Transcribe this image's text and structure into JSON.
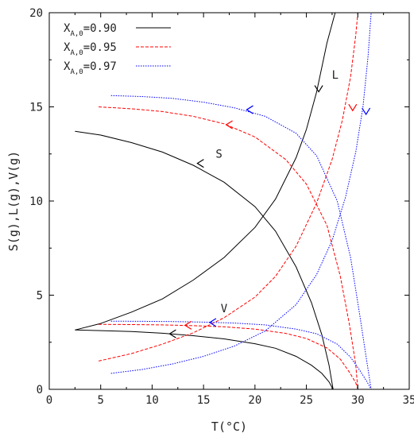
{
  "chart_data": {
    "type": "line",
    "xlabel": "T(°C)",
    "ylabel": "S(g),L(g),V(g)",
    "xlim": [
      0,
      35
    ],
    "ylim": [
      0,
      20
    ],
    "xticks": [
      0,
      5,
      10,
      15,
      20,
      25,
      30,
      35
    ],
    "yticks": [
      0,
      5,
      10,
      15,
      20
    ],
    "grid": false,
    "legend_position": "top-left",
    "legend": [
      {
        "prefix": "X",
        "sub": "A,0",
        "value": "=0.90",
        "color": "#000000",
        "dash": "solid"
      },
      {
        "prefix": "X",
        "sub": "A,0",
        "value": "=0.95",
        "color": "#ff0000",
        "dash": "dashed"
      },
      {
        "prefix": "X",
        "sub": "A,0",
        "value": "=0.97",
        "color": "#0000ff",
        "dash": "dotted"
      }
    ],
    "annotations": [
      {
        "text": "S",
        "x": 16.5,
        "y": 12.3
      },
      {
        "text": "L",
        "x": 27.8,
        "y": 16.5
      },
      {
        "text": "V",
        "x": 17.0,
        "y": 4.1
      }
    ],
    "series": [
      {
        "name": "S (X=0.90)",
        "color": "#000000",
        "dash": "solid",
        "x": [
          2.5,
          5,
          8,
          11,
          14,
          17,
          20,
          22,
          24,
          25.5,
          26.5,
          27.2,
          27.6
        ],
        "y": [
          13.7,
          13.5,
          13.1,
          12.6,
          11.9,
          11.0,
          9.7,
          8.4,
          6.5,
          4.6,
          2.9,
          1.3,
          0
        ]
      },
      {
        "name": "L (X=0.90)",
        "color": "#000000",
        "dash": "solid",
        "x": [
          2.5,
          5,
          8,
          11,
          14,
          17,
          20,
          22,
          24,
          25,
          26,
          27,
          27.8
        ],
        "y": [
          3.15,
          3.5,
          4.1,
          4.8,
          5.8,
          7.0,
          8.6,
          10.1,
          12.3,
          13.8,
          15.8,
          18.4,
          20
        ]
      },
      {
        "name": "V (X=0.90)",
        "color": "#000000",
        "dash": "solid",
        "x": [
          2.5,
          5,
          8,
          11,
          14,
          17,
          20,
          22,
          24,
          25.5,
          26.5,
          27.2,
          27.6
        ],
        "y": [
          3.15,
          3.12,
          3.07,
          2.98,
          2.85,
          2.68,
          2.42,
          2.18,
          1.75,
          1.28,
          0.85,
          0.4,
          0
        ]
      },
      {
        "name": "S (X=0.95)",
        "color": "#ff0000",
        "dash": "dashed",
        "x": [
          4.8,
          8,
          11,
          14,
          17,
          20,
          23,
          25,
          27,
          28.3,
          29.2,
          29.8,
          30.0
        ],
        "y": [
          15.0,
          14.9,
          14.75,
          14.5,
          14.1,
          13.4,
          12.2,
          10.9,
          8.7,
          6.0,
          3.4,
          1.3,
          0
        ]
      },
      {
        "name": "L (X=0.95)",
        "color": "#ff0000",
        "dash": "dashed",
        "x": [
          4.8,
          8,
          11,
          14,
          17,
          20,
          22,
          24,
          26,
          27.5,
          28.5,
          29.3,
          29.8,
          30.0
        ],
        "y": [
          1.5,
          1.9,
          2.4,
          3.0,
          3.8,
          4.9,
          6.0,
          7.6,
          9.9,
          12.2,
          14.3,
          16.6,
          18.8,
          20
        ]
      },
      {
        "name": "V (X=0.95)",
        "color": "#ff0000",
        "dash": "dashed",
        "x": [
          4.8,
          8,
          11,
          14,
          17,
          20,
          23,
          25,
          27,
          28.3,
          29.2,
          29.8,
          30.0
        ],
        "y": [
          3.45,
          3.44,
          3.42,
          3.38,
          3.32,
          3.2,
          2.97,
          2.7,
          2.2,
          1.6,
          0.9,
          0.35,
          0
        ]
      },
      {
        "name": "S (X=0.97)",
        "color": "#0000ff",
        "dash": "dotted",
        "x": [
          6,
          9,
          12,
          15,
          18,
          21,
          24,
          26,
          28,
          29.3,
          30.2,
          30.9,
          31.3
        ],
        "y": [
          15.6,
          15.55,
          15.45,
          15.25,
          14.95,
          14.5,
          13.6,
          12.4,
          10.0,
          7.0,
          3.9,
          1.4,
          0
        ]
      },
      {
        "name": "L (X=0.97)",
        "color": "#0000ff",
        "dash": "dotted",
        "x": [
          6,
          9,
          12,
          15,
          18,
          21,
          24,
          26,
          27.5,
          28.8,
          29.8,
          30.5,
          31.0,
          31.3
        ],
        "y": [
          0.85,
          1.05,
          1.35,
          1.75,
          2.3,
          3.1,
          4.5,
          6.1,
          7.9,
          10.2,
          12.6,
          15.0,
          17.7,
          20
        ]
      },
      {
        "name": "V (X=0.97)",
        "color": "#0000ff",
        "dash": "dotted",
        "x": [
          6,
          9,
          12,
          15,
          18,
          21,
          24,
          26,
          28,
          29.3,
          30.2,
          30.9,
          31.3
        ],
        "y": [
          3.62,
          3.61,
          3.6,
          3.57,
          3.52,
          3.42,
          3.2,
          2.95,
          2.4,
          1.7,
          1.0,
          0.4,
          0
        ]
      }
    ],
    "arrows": [
      {
        "x": 11.7,
        "y": 2.95,
        "dir": "left",
        "color": "#000000"
      },
      {
        "x": 14.4,
        "y": 12.0,
        "dir": "left",
        "color": "#000000"
      },
      {
        "x": 26.2,
        "y": 15.8,
        "dir": "down",
        "color": "#000000"
      },
      {
        "x": 13.2,
        "y": 3.4,
        "dir": "left",
        "color": "#ff0000"
      },
      {
        "x": 17.2,
        "y": 14.05,
        "dir": "left",
        "color": "#ff0000"
      },
      {
        "x": 29.5,
        "y": 14.8,
        "dir": "down",
        "color": "#ff0000"
      },
      {
        "x": 15.6,
        "y": 3.55,
        "dir": "left",
        "color": "#0000ff"
      },
      {
        "x": 19.2,
        "y": 14.85,
        "dir": "left",
        "color": "#0000ff"
      },
      {
        "x": 30.8,
        "y": 14.6,
        "dir": "down",
        "color": "#0000ff"
      }
    ]
  }
}
